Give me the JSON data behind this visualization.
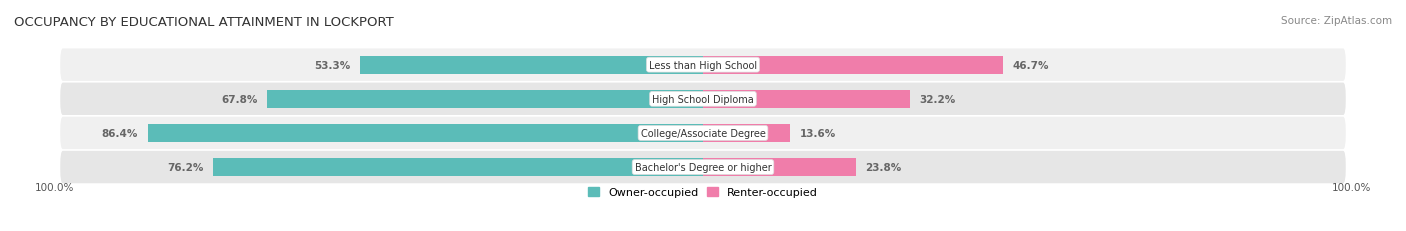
{
  "title": "OCCUPANCY BY EDUCATIONAL ATTAINMENT IN LOCKPORT",
  "source": "Source: ZipAtlas.com",
  "categories": [
    "Less than High School",
    "High School Diploma",
    "College/Associate Degree",
    "Bachelor's Degree or higher"
  ],
  "owner_pct": [
    53.3,
    67.8,
    86.4,
    76.2
  ],
  "renter_pct": [
    46.7,
    32.2,
    13.6,
    23.8
  ],
  "owner_color": "#5BBCB8",
  "renter_color": "#F07DAA",
  "row_bg_color_odd": "#F0F0F0",
  "row_bg_color_even": "#E6E6E6",
  "owner_text_color": "#FFFFFF",
  "renter_text_color": "#555555",
  "outside_text_color": "#666666",
  "owner_label": "Owner-occupied",
  "renter_label": "Renter-occupied",
  "title_fontsize": 9.5,
  "source_fontsize": 7.5,
  "bar_label_fontsize": 7.5,
  "legend_fontsize": 8,
  "axis_label_fontsize": 7.5,
  "left_axis_label": "100.0%",
  "right_axis_label": "100.0%",
  "label_box_bg": "#FFFFFF",
  "label_box_edge": "#DDDDDD"
}
